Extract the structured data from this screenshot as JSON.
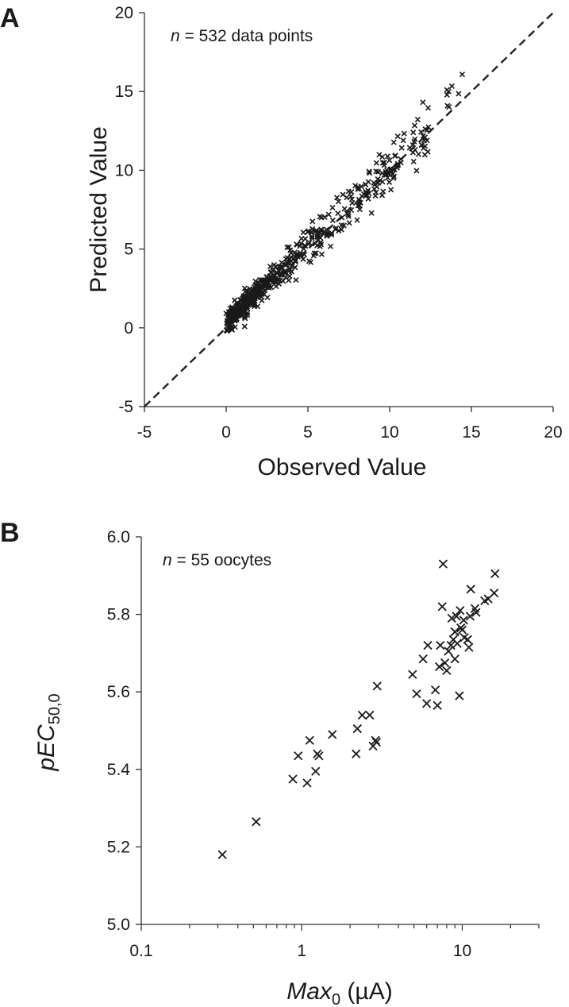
{
  "panels": [
    {
      "letter": "A"
    },
    {
      "letter": "B"
    }
  ],
  "chart_data": [
    {
      "type": "scatter",
      "panel": "A",
      "xlabel": "Observed Value",
      "ylabel": "Predicted Value",
      "xlim": [
        -5,
        20
      ],
      "ylim": [
        -5,
        20
      ],
      "xticks": [
        "-5",
        "0",
        "5",
        "10",
        "15",
        "20"
      ],
      "yticks": [
        "-5",
        "0",
        "5",
        "10",
        "15",
        "20"
      ],
      "annotation": {
        "italic": "n",
        "rest": " = 532 data points"
      },
      "marker": "x",
      "grid": false,
      "identity_line": {
        "style": "dashed",
        "from": [
          -5,
          -5
        ],
        "to": [
          20,
          20
        ]
      },
      "n_points": 532
    },
    {
      "type": "scatter",
      "panel": "B",
      "xscale": "log",
      "xlim": [
        0.1,
        30
      ],
      "ylim": [
        5.0,
        6.0
      ],
      "xticks": [
        "0.1",
        "1",
        "10"
      ],
      "yticks": [
        "5.0",
        "5.2",
        "5.4",
        "5.6",
        "5.8",
        "6.0"
      ],
      "xlabel": {
        "italic": "Max",
        "sub": "0",
        "rest": " (µA)"
      },
      "ylabel": {
        "italic": "pEC",
        "sub": "50,0"
      },
      "annotation": {
        "italic": "n",
        "rest": " = 55 oocytes"
      },
      "marker": "x",
      "grid": false,
      "points": [
        [
          0.32,
          5.18
        ],
        [
          0.52,
          5.265
        ],
        [
          0.88,
          5.375
        ],
        [
          0.95,
          5.435
        ],
        [
          1.08,
          5.365
        ],
        [
          1.12,
          5.475
        ],
        [
          1.22,
          5.395
        ],
        [
          1.25,
          5.44
        ],
        [
          1.28,
          5.435
        ],
        [
          1.55,
          5.49
        ],
        [
          2.18,
          5.44
        ],
        [
          2.22,
          5.505
        ],
        [
          2.38,
          5.54
        ],
        [
          2.65,
          5.54
        ],
        [
          2.78,
          5.46
        ],
        [
          2.88,
          5.475
        ],
        [
          2.92,
          5.47
        ],
        [
          2.95,
          5.615
        ],
        [
          4.9,
          5.645
        ],
        [
          5.2,
          5.595
        ],
        [
          5.7,
          5.685
        ],
        [
          6.0,
          5.57
        ],
        [
          6.1,
          5.72
        ],
        [
          6.8,
          5.605
        ],
        [
          7.0,
          5.565
        ],
        [
          7.2,
          5.665
        ],
        [
          7.3,
          5.72
        ],
        [
          7.5,
          5.82
        ],
        [
          7.6,
          5.93
        ],
        [
          7.8,
          5.675
        ],
        [
          8.0,
          5.655
        ],
        [
          8.2,
          5.705
        ],
        [
          8.5,
          5.72
        ],
        [
          8.6,
          5.79
        ],
        [
          8.8,
          5.735
        ],
        [
          9.0,
          5.685
        ],
        [
          9.0,
          5.755
        ],
        [
          9.2,
          5.795
        ],
        [
          9.3,
          5.725
        ],
        [
          9.6,
          5.59
        ],
        [
          9.7,
          5.81
        ],
        [
          9.8,
          5.765
        ],
        [
          10.0,
          5.76
        ],
        [
          10.2,
          5.785
        ],
        [
          10.3,
          5.74
        ],
        [
          10.8,
          5.735
        ],
        [
          11.0,
          5.715
        ],
        [
          11.2,
          5.795
        ],
        [
          11.3,
          5.865
        ],
        [
          12.0,
          5.815
        ],
        [
          12.2,
          5.805
        ],
        [
          13.8,
          5.835
        ],
        [
          14.5,
          5.84
        ],
        [
          16.0,
          5.905
        ],
        [
          15.8,
          5.855
        ]
      ]
    }
  ]
}
